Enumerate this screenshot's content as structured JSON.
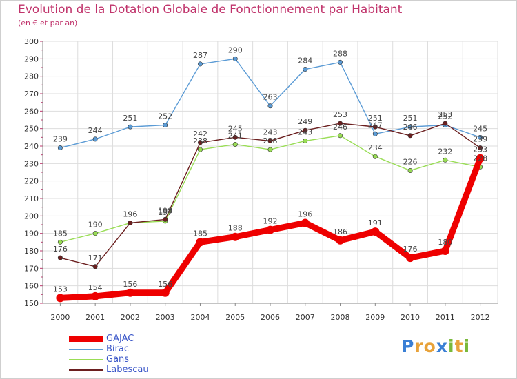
{
  "title": "Evolution de la Dotation Globale de Fonctionnement par Habitant",
  "subtitle": "(en € et par an)",
  "logo": {
    "letters": [
      "P",
      "r",
      "o",
      "x",
      "i",
      "t",
      "i"
    ],
    "colors": [
      "#3a7fd5",
      "#e8a23a",
      "#e8a23a",
      "#3a7fd5",
      "#79b93a",
      "#e8a23a",
      "#79b93a"
    ]
  },
  "chart_data": {
    "type": "line",
    "title": "Evolution de la Dotation Globale de Fonctionnement par Habitant",
    "ylabel": "(en € et par an)",
    "xlabel": "",
    "categories": [
      "2000",
      "2001",
      "2002",
      "2003",
      "2004",
      "2005",
      "2006",
      "2007",
      "2008",
      "2009",
      "2010",
      "2011",
      "2012"
    ],
    "ylim": [
      150,
      300
    ],
    "yticks": [
      150,
      160,
      170,
      180,
      190,
      200,
      210,
      220,
      230,
      240,
      250,
      260,
      270,
      280,
      290,
      300
    ],
    "grid": true,
    "series": [
      {
        "name": "GAJAC",
        "color": "#ee0000",
        "emphasis": true,
        "values": [
          153,
          154,
          156,
          156,
          185,
          188,
          192,
          196,
          186,
          191,
          176,
          180,
          233
        ]
      },
      {
        "name": "Birac",
        "color": "#5b9bd5",
        "values": [
          239,
          244,
          251,
          252,
          287,
          290,
          263,
          284,
          288,
          247,
          251,
          252,
          245
        ]
      },
      {
        "name": "Gans",
        "color": "#99dd55",
        "values": [
          185,
          190,
          196,
          197,
          238,
          241,
          238,
          243,
          246,
          234,
          226,
          232,
          228
        ]
      },
      {
        "name": "Labescau",
        "color": "#6b1f1f",
        "values": [
          176,
          171,
          196,
          198,
          242,
          245,
          243,
          249,
          253,
          251,
          246,
          253,
          239
        ]
      }
    ]
  }
}
